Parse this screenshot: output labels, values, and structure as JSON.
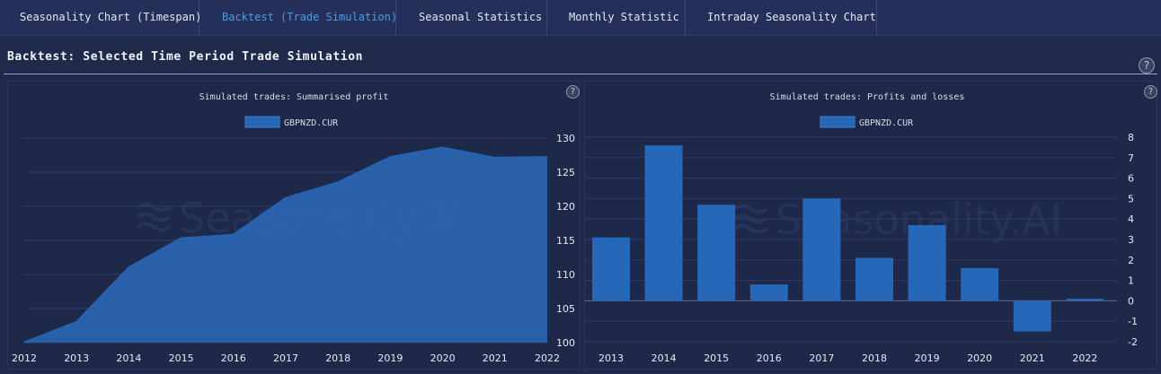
{
  "tabs": [
    {
      "label": "Seasonality Chart (Timespan)",
      "active": false
    },
    {
      "label": "Backtest (Trade Simulation)",
      "active": true
    },
    {
      "label": "Seasonal Statistics",
      "active": false
    },
    {
      "label": "Monthly Statistic",
      "active": false
    },
    {
      "label": "Intraday Seasonality Chart",
      "active": false
    }
  ],
  "page_title": "Backtest: Selected Time Period Trade Simulation",
  "help_glyph": "?",
  "watermark": "Seasonality.AI",
  "colors": {
    "series": "#2668b8",
    "area_fill": "#2a66b4",
    "grid": "#2f3b66"
  },
  "chart_data": [
    {
      "type": "area",
      "title": "Simulated trades: Summarised profit",
      "series": [
        {
          "name": "GBPNZD.CUR",
          "values": [
            100,
            103,
            111,
            115.3,
            115.8,
            121.2,
            123.5,
            127.2,
            128.6,
            127.1,
            127.2
          ]
        }
      ],
      "x": [
        "2012",
        "2013",
        "2014",
        "2015",
        "2016",
        "2017",
        "2018",
        "2019",
        "2020",
        "2021",
        "2022"
      ],
      "ylim": [
        100,
        130
      ],
      "yticks": [
        "100",
        "105",
        "110",
        "115",
        "120",
        "125",
        "130"
      ],
      "grid": true,
      "legend": "top-center",
      "y_axis_side": "right"
    },
    {
      "type": "bar",
      "title": "Simulated trades: Profits and losses",
      "series": [
        {
          "name": "GBPNZD.CUR",
          "values": [
            3.1,
            7.6,
            4.7,
            0.8,
            5.0,
            2.1,
            3.7,
            1.6,
            -1.5,
            0.1
          ]
        }
      ],
      "categories": [
        "2013",
        "2014",
        "2015",
        "2016",
        "2017",
        "2018",
        "2019",
        "2020",
        "2021",
        "2022"
      ],
      "ylim": [
        -2,
        8
      ],
      "yticks": [
        "-2",
        "-1",
        "0",
        "1",
        "2",
        "3",
        "4",
        "5",
        "6",
        "7",
        "8"
      ],
      "grid": true,
      "legend": "top-center",
      "y_axis_side": "right"
    }
  ]
}
